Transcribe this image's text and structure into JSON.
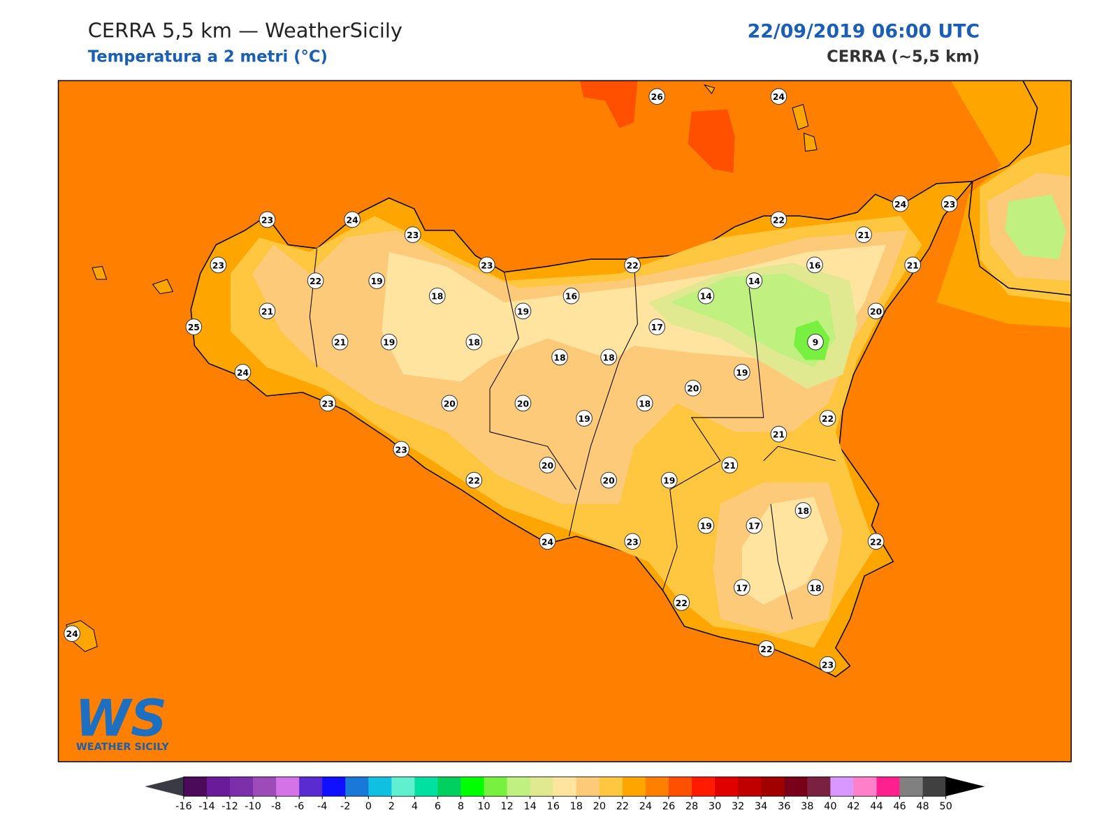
{
  "header": {
    "title": "CERRA 5,5 km — WeatherSicily",
    "subtitle": "Temperatura a 2 metri (°C)",
    "datetime": "22/09/2019 06:00 UTC",
    "model": "CERRA (~5,5 km)"
  },
  "stations": [
    26,
    24,
    23,
    24,
    23,
    22,
    24,
    23,
    21,
    23,
    22,
    19,
    23,
    22,
    16,
    21,
    14,
    18,
    16,
    14,
    21,
    19,
    20,
    25,
    17,
    21,
    19,
    18,
    9,
    18,
    18,
    24,
    19,
    20,
    23,
    20,
    20,
    18,
    19,
    22,
    21,
    23,
    20,
    21,
    22,
    20,
    19,
    18,
    19,
    17,
    24,
    23,
    22,
    17,
    18,
    22,
    24,
    22,
    23
  ],
  "colorbar": {
    "ticks": [
      -16,
      -14,
      -12,
      -10,
      -8,
      -6,
      -4,
      -2,
      0,
      2,
      4,
      6,
      8,
      10,
      12,
      14,
      16,
      18,
      20,
      22,
      24,
      26,
      28,
      30,
      32,
      34,
      36,
      38,
      40,
      42,
      44,
      46,
      48,
      50
    ],
    "colors": [
      "#4b0a5a",
      "#6a1b9a",
      "#7b2fa8",
      "#9c4bb8",
      "#d472e8",
      "#5a2bd0",
      "#1010ff",
      "#1a78d8",
      "#10c0e0",
      "#60f0d0",
      "#00e0a0",
      "#00d060",
      "#00ff00",
      "#78f040",
      "#c0f080",
      "#e0e890",
      "#ffe4a0",
      "#fdca7a",
      "#ffc640",
      "#ffa500",
      "#ff8000",
      "#ff5000",
      "#ff1a00",
      "#e00000",
      "#c00000",
      "#a00000",
      "#780018",
      "#7a2040",
      "#d898ff",
      "#ff80c8",
      "#ff2090",
      "#808080",
      "#404040"
    ]
  },
  "logo": {
    "mark": "WS",
    "name": "WEATHER SICILY"
  }
}
